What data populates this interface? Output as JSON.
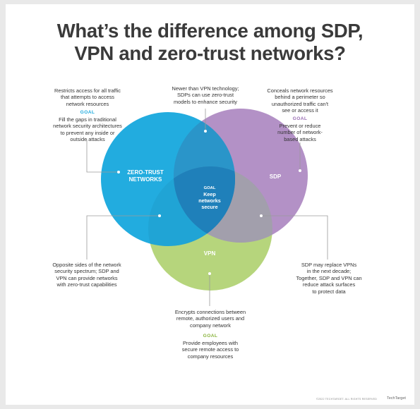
{
  "title": {
    "line1": "What’s the difference among SDP,",
    "line2": "VPN and zero-trust networks?"
  },
  "colors": {
    "zero_trust": "#22acdf",
    "sdp": "#b391c6",
    "vpn": "#b6d57c",
    "overlap_ztn_sdp": "#2a95c9",
    "sdp_vpn": "#a29fac",
    "all_three": "#1f80ba",
    "goal_text_zero_trust": "#22acdf",
    "goal_text_sdp": "#9b6fb5",
    "goal_text_vpn": "#8ab43e"
  },
  "circles": {
    "zero_trust_label_1": "ZERO-TRUST",
    "zero_trust_label_2": "NETWORKS",
    "sdp_label": "SDP",
    "vpn_label": "VPN",
    "center_goal": "GOAL",
    "center_text_1": "Keep",
    "center_text_2": "networks",
    "center_text_3": "secure"
  },
  "annotations": {
    "zero_trust_desc": [
      "Restricts access for all traffic",
      "that attempts to access",
      "network resources"
    ],
    "zero_trust_goal_label": "GOAL",
    "zero_trust_goal": [
      "Fill the gaps in traditional",
      "network security architectures",
      "to prevent any inside or",
      "outside attacks"
    ],
    "ztn_sdp": [
      "Newer than VPN technology;",
      "SDPs can use zero-trust",
      "models to enhance security"
    ],
    "sdp_desc": [
      "Conceals network resources",
      "behind a perimeter so",
      "unauthorized traffic can't",
      "see or access it"
    ],
    "sdp_goal_label": "GOAL",
    "sdp_goal": [
      "Prevent or reduce",
      "number of network-",
      "based attacks"
    ],
    "ztn_vpn": [
      "Opposite sides of the network",
      "security spectrum; SDP and",
      "VPN can provide networks",
      "with zero-trust capabilities"
    ],
    "sdp_vpn": [
      "SDP may replace VPNs",
      "in the next decade;",
      "Together, SDP and VPN can",
      "reduce attack surfaces",
      "to protect data"
    ],
    "vpn_desc": [
      "Encrypts connections between",
      "remote, authorized users and",
      "company network"
    ],
    "vpn_goal_label": "GOAL",
    "vpn_goal": [
      "Provide employees with",
      "secure remote access to",
      "company resources"
    ]
  },
  "footer": {
    "copyright": "©2022 TECHTARGET. ALL RIGHTS RESERVED",
    "brand": "TechTarget"
  }
}
